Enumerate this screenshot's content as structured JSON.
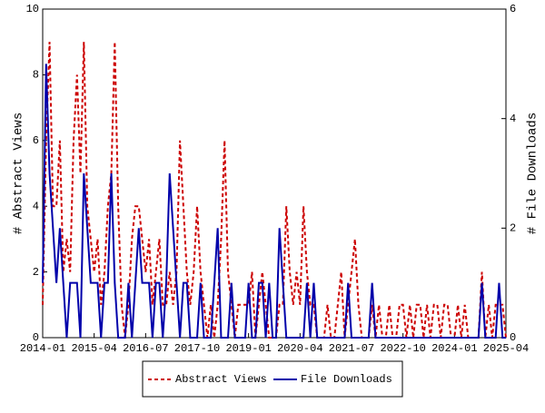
{
  "chart_data": {
    "type": "line",
    "categories": [
      "2014-01",
      null,
      null,
      null,
      null,
      null,
      null,
      null,
      null,
      null,
      null,
      null,
      null,
      null,
      null,
      "2015-04",
      null,
      null,
      null,
      null,
      null,
      null,
      null,
      null,
      null,
      null,
      null,
      null,
      null,
      null,
      "2016-07",
      null,
      null,
      null,
      null,
      null,
      null,
      null,
      null,
      null,
      null,
      null,
      null,
      null,
      null,
      "2017-10",
      null,
      null,
      null,
      null,
      null,
      null,
      null,
      null,
      null,
      null,
      null,
      null,
      null,
      null,
      "2019-01",
      null,
      null,
      null,
      null,
      null,
      null,
      null,
      null,
      null,
      null,
      null,
      null,
      null,
      null,
      "2020-04",
      null,
      null,
      null,
      null,
      null,
      null,
      null,
      null,
      null,
      null,
      null,
      null,
      null,
      null,
      "2021-07",
      null,
      null,
      null,
      null,
      null,
      null,
      null,
      null,
      null,
      null,
      null,
      null,
      null,
      null,
      "2022-10",
      null,
      null,
      null,
      null,
      null,
      null,
      null,
      null,
      null,
      null,
      null,
      null,
      null,
      null,
      "2024-01",
      null,
      null,
      null,
      null,
      null,
      null,
      null,
      null,
      null,
      null,
      null,
      null,
      null,
      null,
      "2025-04"
    ],
    "series": [
      {
        "name": "Abstract Views",
        "color": "#cc0000",
        "dashed": true,
        "values": [
          1,
          6,
          9,
          4,
          4,
          6,
          2,
          3,
          2,
          6,
          8,
          5,
          9,
          4,
          3,
          2,
          3,
          1,
          2,
          4,
          5,
          9,
          4,
          1,
          0,
          1,
          3,
          4,
          4,
          3,
          2,
          3,
          1,
          2,
          3,
          1,
          1,
          2,
          1,
          2,
          6,
          4,
          2,
          1,
          2,
          4,
          2,
          1,
          0,
          1,
          0,
          1,
          3,
          6,
          2,
          1,
          0,
          1,
          1,
          1,
          1,
          2,
          0,
          1,
          2,
          1,
          0,
          0,
          0,
          1,
          1,
          4,
          2,
          1,
          2,
          1,
          4,
          2,
          1,
          1,
          0,
          0,
          0,
          1,
          0,
          0,
          1,
          2,
          0,
          1,
          2,
          3,
          1,
          0,
          0,
          0,
          1,
          0,
          1,
          0,
          0,
          1,
          0,
          0,
          1,
          1,
          0,
          1,
          0,
          1,
          1,
          0,
          1,
          0,
          1,
          1,
          0,
          1,
          1,
          0,
          0,
          1,
          0,
          1,
          0,
          0,
          0,
          0,
          2,
          0,
          1,
          0,
          1,
          1,
          1,
          0
        ]
      },
      {
        "name": "File Downloads",
        "color": "#0000aa",
        "axis": "y2",
        "values": [
          1,
          5,
          3,
          2,
          1,
          2,
          1,
          0,
          1,
          1,
          1,
          0,
          3,
          2,
          1,
          1,
          1,
          0,
          1,
          1,
          3,
          1,
          0,
          0,
          0,
          1,
          0,
          1,
          2,
          1,
          1,
          1,
          0,
          1,
          1,
          0,
          1,
          3,
          2,
          1,
          0,
          1,
          1,
          0,
          0,
          0,
          1,
          0,
          0,
          0,
          1,
          2,
          0,
          0,
          0,
          1,
          0,
          0,
          0,
          0,
          1,
          0,
          0,
          1,
          1,
          0,
          1,
          0,
          0,
          2,
          1,
          0,
          0,
          0,
          0,
          0,
          0,
          1,
          0,
          1,
          0,
          0,
          0,
          0,
          0,
          0,
          0,
          0,
          0,
          1,
          0,
          0,
          0,
          0,
          0,
          0,
          1,
          0,
          0,
          0,
          0,
          0,
          0,
          0,
          0,
          0,
          0,
          0,
          0,
          0,
          0,
          0,
          0,
          0,
          0,
          0,
          0,
          0,
          0,
          0,
          0,
          0,
          0,
          0,
          0,
          0,
          0,
          0,
          1,
          0,
          0,
          0,
          0,
          1,
          0,
          0
        ]
      }
    ],
    "y_label": "# Abstract Views",
    "y2_label": "# File Downloads",
    "ylim": [
      0,
      10
    ],
    "yticks": [
      0,
      2,
      4,
      6,
      8,
      10
    ],
    "y2lim": [
      0,
      6
    ],
    "y2ticks": [
      0,
      2,
      4,
      6
    ]
  }
}
